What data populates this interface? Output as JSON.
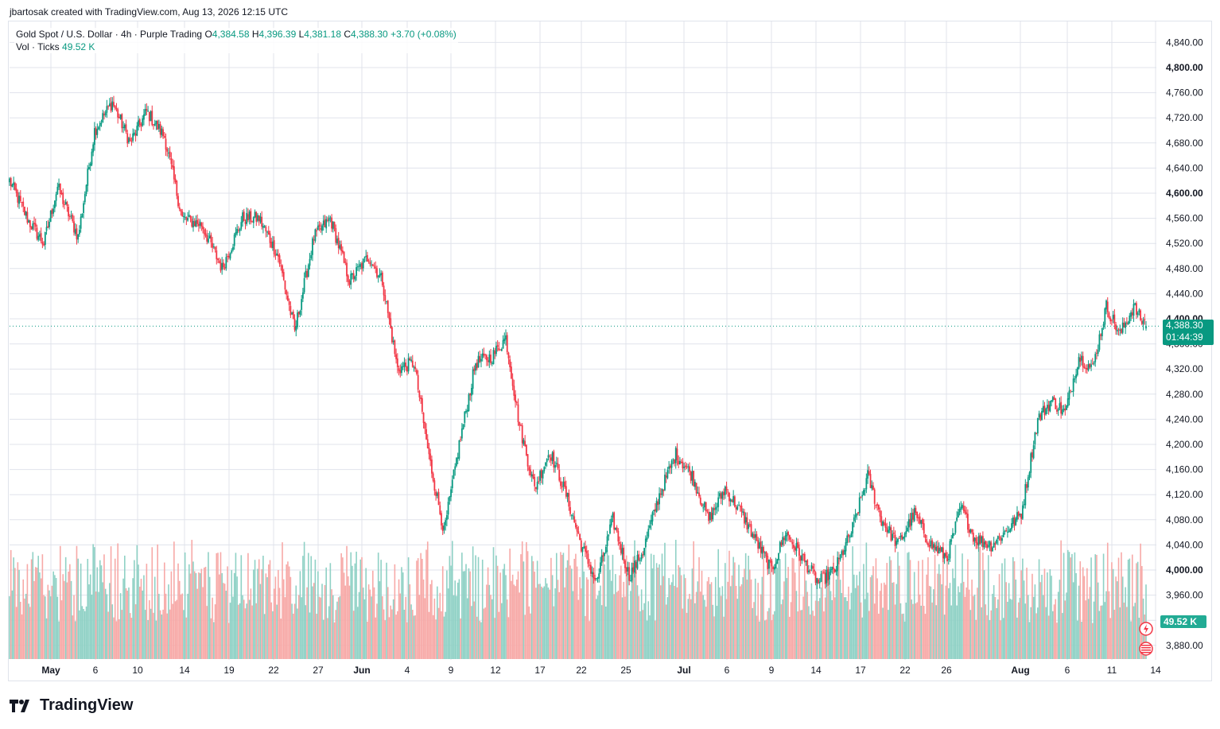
{
  "header": {
    "created_by": "jbartosak created with TradingView.com, Aug 13, 2026 12:15 UTC"
  },
  "legend": {
    "symbol": "Gold Spot / U.S. Dollar · 4h · Purple Trading",
    "o_label": "O",
    "o_value": "4,384.58",
    "h_label": "H",
    "h_value": "4,396.39",
    "l_label": "L",
    "l_value": "4,381.18",
    "c_label": "C",
    "c_value": "4,388.30",
    "change": "+3.70 (+0.08%)",
    "vol_label": "Vol · Ticks",
    "vol_value": "49.52 K"
  },
  "price_tag": {
    "price": "4,388.30",
    "countdown": "01:44:39"
  },
  "volume_tag": "49.52 K",
  "footer": {
    "brand": "TradingView"
  },
  "colors": {
    "up": "#089981",
    "down": "#f23645",
    "up_volume": "#8fd1c5",
    "down_volume": "#f7a9a7",
    "grid": "#e0e3eb"
  },
  "chart_data": {
    "type": "candlestick",
    "title": "Gold Spot / U.S. Dollar · 4h · Purple Trading",
    "timeframe": "4h",
    "ylim": [
      3855,
      4865
    ],
    "y_ticks": [
      "3,880.00",
      "3,920.00",
      "3,960.00",
      "4,000.00",
      "4,040.00",
      "4,080.00",
      "4,120.00",
      "4,160.00",
      "4,200.00",
      "4,240.00",
      "4,280.00",
      "4,320.00",
      "4,360.00",
      "4,400.00",
      "4,440.00",
      "4,480.00",
      "4,520.00",
      "4,560.00",
      "4,600.00",
      "4,640.00",
      "4,680.00",
      "4,720.00",
      "4,760.00",
      "4,800.00",
      "4,840.00"
    ],
    "y_tick_bold": [
      "4,000.00",
      "4,400.00",
      "4,600.00",
      "4,800.00"
    ],
    "x_ticks": [
      {
        "label": "May",
        "bold": true
      },
      {
        "label": "6"
      },
      {
        "label": "10"
      },
      {
        "label": "14"
      },
      {
        "label": "19"
      },
      {
        "label": "22"
      },
      {
        "label": "27"
      },
      {
        "label": "Jun",
        "bold": true
      },
      {
        "label": "4"
      },
      {
        "label": "9"
      },
      {
        "label": "12"
      },
      {
        "label": "17"
      },
      {
        "label": "22"
      },
      {
        "label": "25"
      },
      {
        "label": "Jul",
        "bold": true
      },
      {
        "label": "6"
      },
      {
        "label": "9"
      },
      {
        "label": "14"
      },
      {
        "label": "17"
      },
      {
        "label": "22"
      },
      {
        "label": "26"
      },
      {
        "label": "Aug",
        "bold": true
      },
      {
        "label": "6"
      },
      {
        "label": "11"
      },
      {
        "label": "14"
      }
    ],
    "key_points": [
      {
        "bar": 0,
        "close": 4620
      },
      {
        "bar": 14,
        "close": 4555
      },
      {
        "bar": 25,
        "close": 4520
      },
      {
        "bar": 35,
        "close": 4610
      },
      {
        "bar": 50,
        "close": 4530
      },
      {
        "bar": 62,
        "close": 4700
      },
      {
        "bar": 75,
        "close": 4745
      },
      {
        "bar": 88,
        "close": 4680
      },
      {
        "bar": 100,
        "close": 4730
      },
      {
        "bar": 113,
        "close": 4690
      },
      {
        "bar": 126,
        "close": 4560
      },
      {
        "bar": 140,
        "close": 4550
      },
      {
        "bar": 155,
        "close": 4480
      },
      {
        "bar": 170,
        "close": 4560
      },
      {
        "bar": 182,
        "close": 4560
      },
      {
        "bar": 196,
        "close": 4500
      },
      {
        "bar": 208,
        "close": 4380
      },
      {
        "bar": 222,
        "close": 4530
      },
      {
        "bar": 234,
        "close": 4560
      },
      {
        "bar": 248,
        "close": 4460
      },
      {
        "bar": 262,
        "close": 4500
      },
      {
        "bar": 272,
        "close": 4460
      },
      {
        "bar": 283,
        "close": 4320
      },
      {
        "bar": 295,
        "close": 4330
      },
      {
        "bar": 306,
        "close": 4180
      },
      {
        "bar": 317,
        "close": 4060
      },
      {
        "bar": 328,
        "close": 4200
      },
      {
        "bar": 340,
        "close": 4330
      },
      {
        "bar": 352,
        "close": 4340
      },
      {
        "bar": 362,
        "close": 4370
      },
      {
        "bar": 372,
        "close": 4230
      },
      {
        "bar": 383,
        "close": 4130
      },
      {
        "bar": 394,
        "close": 4190
      },
      {
        "bar": 406,
        "close": 4120
      },
      {
        "bar": 417,
        "close": 4040
      },
      {
        "bar": 428,
        "close": 3980
      },
      {
        "bar": 440,
        "close": 4080
      },
      {
        "bar": 452,
        "close": 3990
      },
      {
        "bar": 462,
        "close": 4030
      },
      {
        "bar": 474,
        "close": 4120
      },
      {
        "bar": 486,
        "close": 4185
      },
      {
        "bar": 498,
        "close": 4150
      },
      {
        "bar": 510,
        "close": 4080
      },
      {
        "bar": 522,
        "close": 4130
      },
      {
        "bar": 534,
        "close": 4090
      },
      {
        "bar": 546,
        "close": 4040
      },
      {
        "bar": 556,
        "close": 4000
      },
      {
        "bar": 566,
        "close": 4060
      },
      {
        "bar": 578,
        "close": 4020
      },
      {
        "bar": 590,
        "close": 3980
      },
      {
        "bar": 602,
        "close": 4000
      },
      {
        "bar": 614,
        "close": 4060
      },
      {
        "bar": 626,
        "close": 4150
      },
      {
        "bar": 636,
        "close": 4080
      },
      {
        "bar": 648,
        "close": 4040
      },
      {
        "bar": 660,
        "close": 4090
      },
      {
        "bar": 672,
        "close": 4040
      },
      {
        "bar": 684,
        "close": 4020
      },
      {
        "bar": 694,
        "close": 4100
      },
      {
        "bar": 704,
        "close": 4050
      },
      {
        "bar": 716,
        "close": 4040
      },
      {
        "bar": 726,
        "close": 4060
      },
      {
        "bar": 738,
        "close": 4090
      },
      {
        "bar": 750,
        "close": 4240
      },
      {
        "bar": 760,
        "close": 4270
      },
      {
        "bar": 770,
        "close": 4250
      },
      {
        "bar": 780,
        "close": 4340
      },
      {
        "bar": 790,
        "close": 4320
      },
      {
        "bar": 800,
        "close": 4420
      },
      {
        "bar": 810,
        "close": 4375
      },
      {
        "bar": 820,
        "close": 4420
      },
      {
        "bar": 828,
        "close": 4388.3
      }
    ],
    "last": {
      "open": 4384.58,
      "high": 4396.39,
      "low": 4381.18,
      "close": 4388.3
    },
    "volume_ticks_last": "49.52 K"
  }
}
